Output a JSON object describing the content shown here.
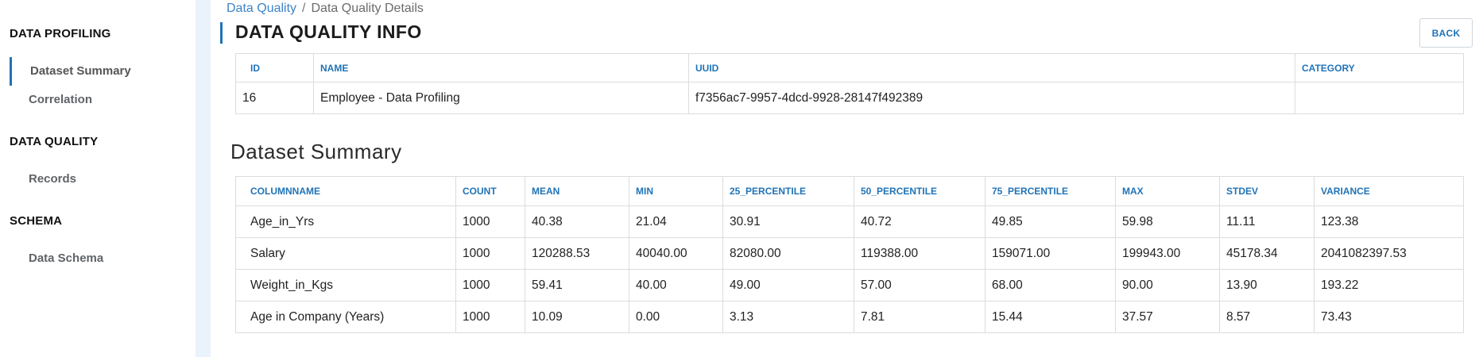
{
  "sidebar": {
    "sections": [
      {
        "title": "DATA PROFILING",
        "items": [
          "Dataset Summary",
          "Correlation"
        ]
      },
      {
        "title": "DATA QUALITY",
        "items": [
          "Records"
        ]
      },
      {
        "title": "SCHEMA",
        "items": [
          "Data Schema"
        ]
      }
    ],
    "active_item": "Dataset Summary"
  },
  "breadcrumb": {
    "parent": "Data Quality",
    "separator": "/",
    "current": "Data Quality Details"
  },
  "page": {
    "title": "DATA QUALITY INFO",
    "back_label": "BACK"
  },
  "info_table": {
    "headers": [
      "ID",
      "NAME",
      "UUID",
      "CATEGORY"
    ],
    "row": [
      "16",
      "Employee - Data Profiling",
      "f7356ac7-9957-4dcd-9928-28147f492389",
      ""
    ]
  },
  "summary": {
    "title": "Dataset Summary",
    "headers": [
      "COLUMNNAME",
      "COUNT",
      "MEAN",
      "MIN",
      "25_PERCENTILE",
      "50_PERCENTILE",
      "75_PERCENTILE",
      "MAX",
      "STDEV",
      "VARIANCE"
    ],
    "rows": [
      [
        "Age_in_Yrs",
        "1000",
        "40.38",
        "21.04",
        "30.91",
        "40.72",
        "49.85",
        "59.98",
        "11.11",
        "123.38"
      ],
      [
        "Salary",
        "1000",
        "120288.53",
        "40040.00",
        "82080.00",
        "119388.00",
        "159071.00",
        "199943.00",
        "45178.34",
        "2041082397.53"
      ],
      [
        "Weight_in_Kgs",
        "1000",
        "59.41",
        "40.00",
        "49.00",
        "57.00",
        "68.00",
        "90.00",
        "13.90",
        "193.22"
      ],
      [
        "Age in Company (Years)",
        "1000",
        "10.09",
        "0.00",
        "3.13",
        "7.81",
        "15.44",
        "37.57",
        "8.57",
        "73.43"
      ]
    ]
  },
  "colors": {
    "accent": "#1f73b7",
    "link": "#3c84c9",
    "gutter": "#eaf3fc"
  }
}
